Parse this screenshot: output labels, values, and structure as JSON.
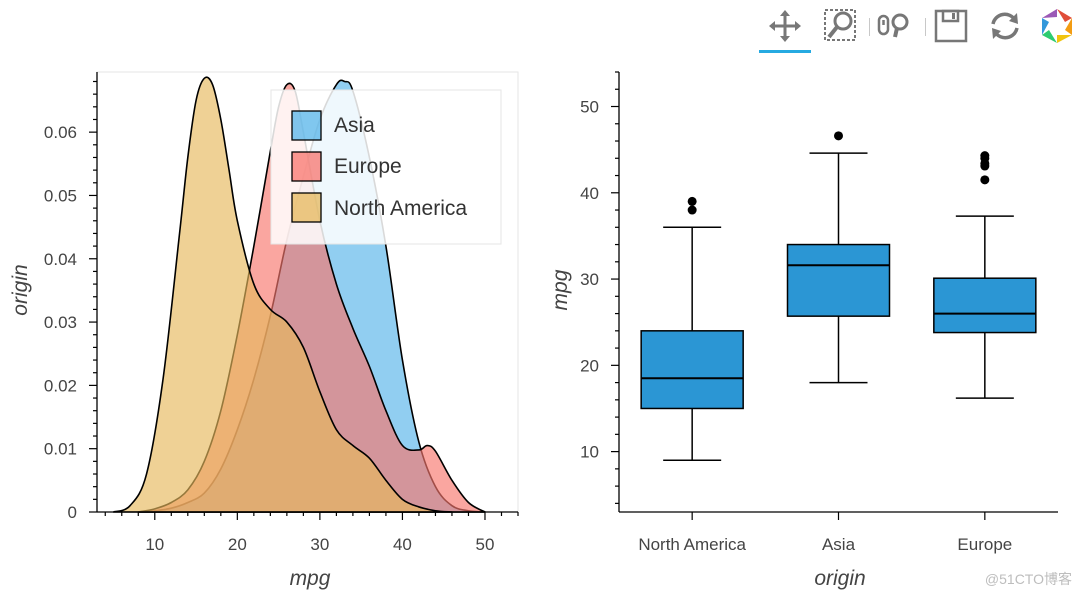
{
  "toolbar": {
    "tools": [
      {
        "name": "pan-tool",
        "icon": "pan-icon"
      },
      {
        "name": "box-zoom-tool",
        "icon": "box-zoom-icon"
      },
      {
        "name": "wheel-zoom-tool",
        "icon": "wheel-zoom-icon"
      },
      {
        "name": "save-tool",
        "icon": "save-icon"
      },
      {
        "name": "reset-tool",
        "icon": "reset-icon"
      },
      {
        "name": "bokeh-logo",
        "icon": "bokeh-logo-icon"
      }
    ],
    "active_color": "#26aae1"
  },
  "chart_data": [
    {
      "type": "area",
      "title": "",
      "xlabel": "mpg",
      "ylabel": "origin",
      "xlim": [
        3,
        54
      ],
      "ylim": [
        0,
        0.0695
      ],
      "xticks": [
        "10",
        "20",
        "30",
        "40",
        "50"
      ],
      "yticks": [
        "0",
        "0.01",
        "0.02",
        "0.03",
        "0.04",
        "0.05",
        "0.06"
      ],
      "grid": false,
      "legend_position": "top-right",
      "series": [
        {
          "name": "Asia",
          "color": "#56b4e9",
          "x": [
            8,
            10,
            12,
            14,
            16,
            18,
            20,
            22,
            24,
            26,
            28,
            30,
            32,
            33,
            34,
            36,
            38,
            40,
            42,
            44,
            46,
            48,
            50
          ],
          "y": [
            0,
            0.0002,
            0.0006,
            0.0015,
            0.003,
            0.0068,
            0.013,
            0.021,
            0.031,
            0.043,
            0.053,
            0.062,
            0.0675,
            0.068,
            0.0665,
            0.056,
            0.042,
            0.024,
            0.011,
            0.004,
            0.001,
            0.0002,
            0
          ]
        },
        {
          "name": "Europe",
          "color": "#f8766d",
          "x": [
            8,
            10,
            12,
            14,
            16,
            18,
            20,
            22,
            24,
            25,
            26,
            27,
            28,
            30,
            32,
            34,
            36,
            38,
            40,
            42,
            43,
            44,
            46,
            48,
            50
          ],
          "y": [
            0,
            0.0005,
            0.0015,
            0.0035,
            0.008,
            0.016,
            0.028,
            0.042,
            0.057,
            0.064,
            0.0675,
            0.0665,
            0.06,
            0.046,
            0.036,
            0.029,
            0.023,
            0.016,
            0.0105,
            0.0098,
            0.0105,
            0.0096,
            0.005,
            0.0015,
            0
          ]
        },
        {
          "name": "North America",
          "color": "#e6b85c",
          "x": [
            5,
            7,
            9,
            11,
            13,
            14,
            15,
            16,
            17,
            18,
            19,
            20,
            22,
            24,
            26,
            28,
            30,
            32,
            34,
            36,
            38,
            40,
            42,
            44,
            46
          ],
          "y": [
            0,
            0.001,
            0.006,
            0.021,
            0.044,
            0.056,
            0.065,
            0.0685,
            0.0675,
            0.062,
            0.054,
            0.046,
            0.036,
            0.032,
            0.03,
            0.026,
            0.019,
            0.013,
            0.0105,
            0.0085,
            0.005,
            0.002,
            0.0008,
            0.0002,
            0
          ]
        }
      ]
    },
    {
      "type": "box",
      "title": "",
      "xlabel": "origin",
      "ylabel": "mpg",
      "ylim": [
        3,
        54
      ],
      "yticks": [
        "10",
        "20",
        "30",
        "40",
        "50"
      ],
      "categories": [
        "North America",
        "Asia",
        "Europe"
      ],
      "grid": false,
      "box_color": "#2b96d4",
      "boxes": [
        {
          "category": "North America",
          "min": 9,
          "q1": 15,
          "median": 18.5,
          "q3": 24,
          "max": 36,
          "outliers": [
            38,
            39
          ]
        },
        {
          "category": "Asia",
          "min": 18,
          "q1": 25.7,
          "median": 31.6,
          "q3": 34,
          "max": 44.6,
          "outliers": [
            46.6
          ]
        },
        {
          "category": "Europe",
          "min": 16.2,
          "q1": 23.8,
          "median": 26,
          "q3": 30.1,
          "max": 37.3,
          "outliers": [
            41.5,
            43.1,
            43.4,
            44,
            44.3
          ]
        }
      ]
    }
  ],
  "watermark": "@51CTO博客"
}
